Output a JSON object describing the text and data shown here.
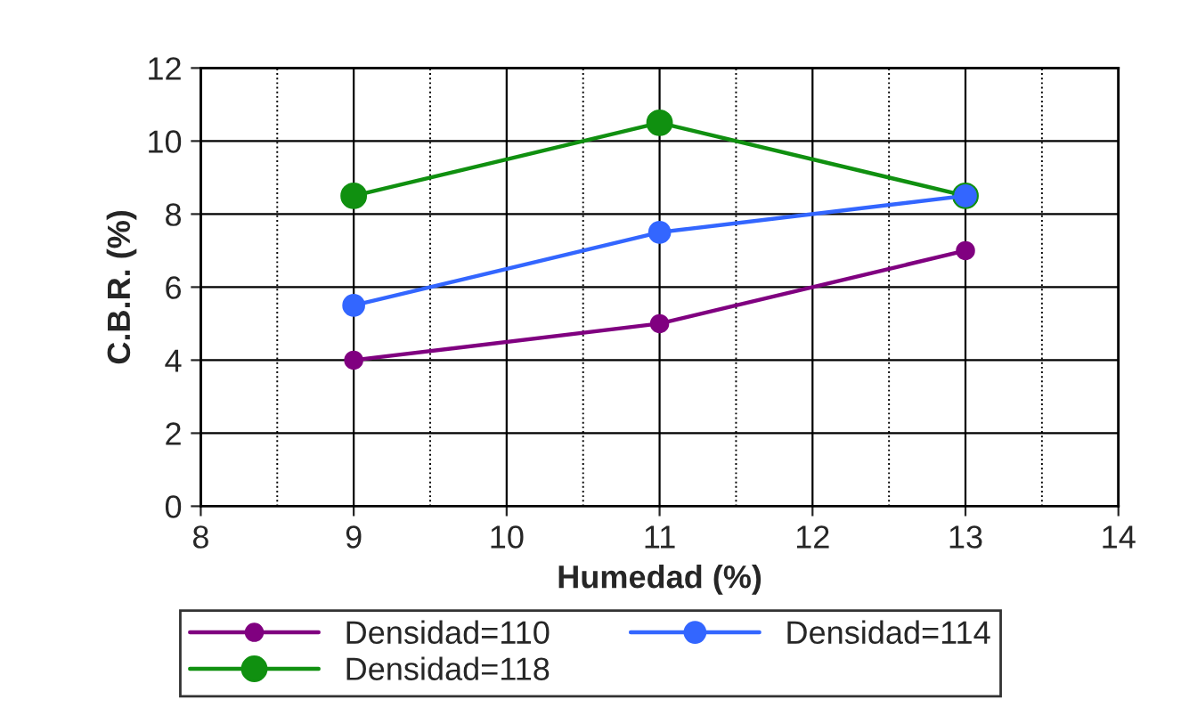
{
  "chart_data": {
    "type": "line",
    "xlabel": "Humedad (%)",
    "ylabel": "C.B.R. (%)",
    "x": [
      9,
      11,
      13
    ],
    "series": [
      {
        "name": "Densidad=110",
        "color": "#800080",
        "values": [
          4,
          5,
          7
        ]
      },
      {
        "name": "Densidad=114",
        "color": "#3366ff",
        "values": [
          5.5,
          7.5,
          8.5
        ]
      },
      {
        "name": "Densidad=118",
        "color": "#109010",
        "values": [
          8.5,
          10.5,
          8.5
        ]
      }
    ],
    "xlim": [
      8,
      14
    ],
    "xticks": [
      8,
      9,
      10,
      11,
      12,
      13,
      14
    ],
    "ylim": [
      0,
      12
    ],
    "yticks": [
      0,
      2,
      4,
      6,
      8,
      10,
      12
    ],
    "grid": true,
    "legend": "bottom",
    "marker": "circle",
    "line_style": "solid"
  }
}
